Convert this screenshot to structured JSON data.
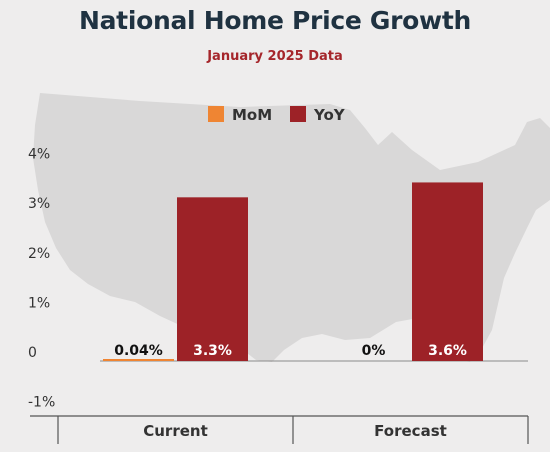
{
  "header": {
    "title": "National Home Price Growth",
    "subtitle": "January 2025 Data"
  },
  "colors": {
    "mom": "#ef8533",
    "yoy": "#9d2227",
    "title": "#1f3241",
    "subtitle": "#a5262b",
    "map": "#d9d8d8",
    "background": "#eeeded"
  },
  "chart_data": {
    "type": "bar",
    "title": "National Home Price Growth",
    "subtitle": "January 2025 Data",
    "categories": [
      "Current",
      "Forecast"
    ],
    "series": [
      {
        "name": "MoM",
        "values": [
          0.04,
          0
        ],
        "labels": [
          "0.04%",
          "0%"
        ]
      },
      {
        "name": "YoY",
        "values": [
          3.3,
          3.6
        ],
        "labels": [
          "3.3%",
          "3.6%"
        ]
      }
    ],
    "yticks": [
      4,
      3,
      2,
      1,
      0,
      -1
    ],
    "ytick_labels": [
      "4%",
      "3%",
      "2%",
      "1%",
      "0",
      "-1%"
    ],
    "ylim": [
      -1.5,
      4.4
    ],
    "legend": "top-center",
    "grid": false,
    "background_image": "us-map-silhouette"
  }
}
